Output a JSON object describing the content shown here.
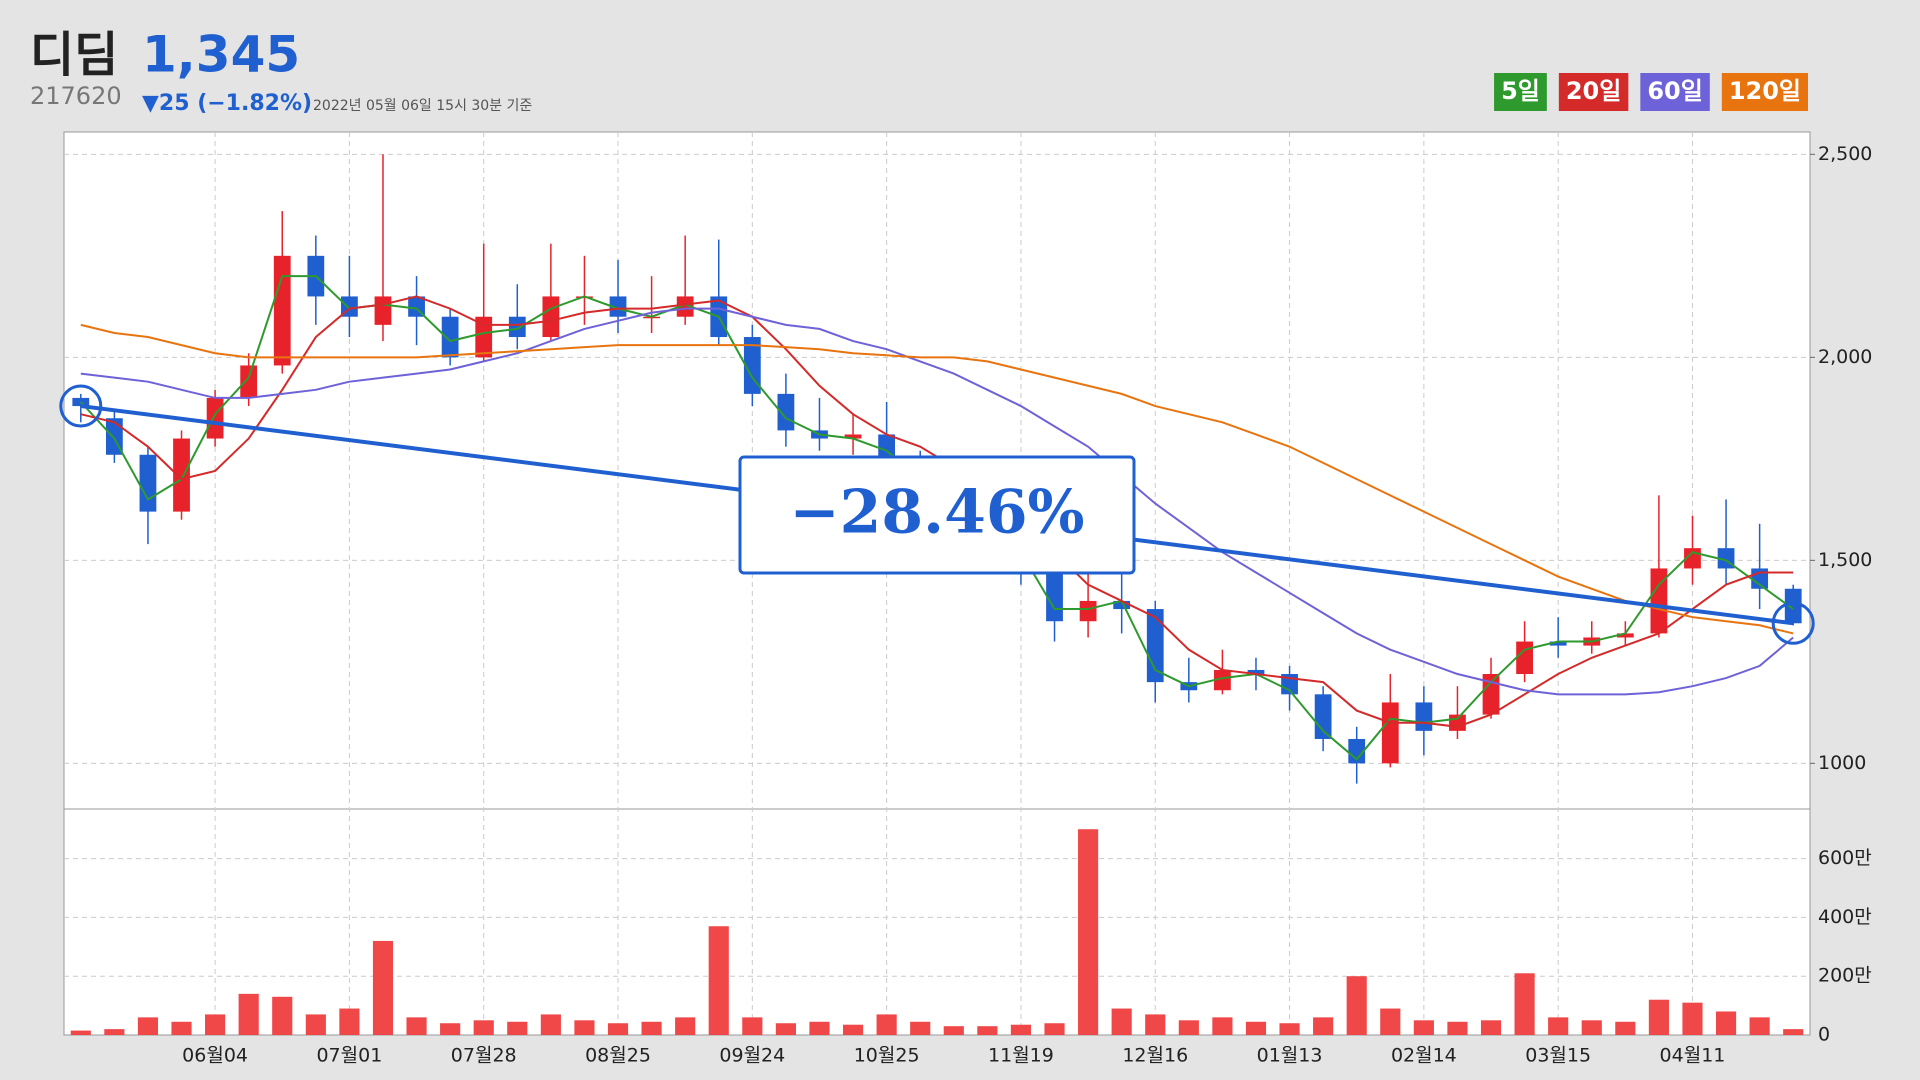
{
  "header": {
    "name": "디딤",
    "price": "1,345",
    "code": "217620",
    "change": "▼25 (−1.82%)",
    "timestamp": "2022년 05월 06일 15시 30분 기준"
  },
  "chart_data": {
    "type": "candlestick",
    "categories": [
      null,
      null,
      null,
      null,
      "06월04",
      null,
      null,
      null,
      "07월01",
      null,
      null,
      null,
      "07월28",
      null,
      null,
      null,
      "08월25",
      null,
      null,
      null,
      "09월24",
      null,
      null,
      null,
      "10월25",
      null,
      null,
      null,
      "11월19",
      null,
      null,
      null,
      "12월16",
      null,
      null,
      null,
      "01월13",
      null,
      null,
      null,
      "02월14",
      null,
      null,
      null,
      "03월15",
      null,
      null,
      null,
      "04월11",
      null,
      null,
      null
    ],
    "open": [
      1900,
      1850,
      1760,
      1620,
      1800,
      1900,
      1980,
      2250,
      2150,
      2080,
      2150,
      2100,
      2000,
      2100,
      2050,
      2150,
      2150,
      2100,
      2100,
      2150,
      2050,
      1910,
      1820,
      1800,
      1810,
      1750,
      1680,
      1650,
      1600,
      1500,
      1350,
      1400,
      1380,
      1200,
      1180,
      1230,
      1220,
      1170,
      1060,
      1000,
      1150,
      1080,
      1120,
      1220,
      1300,
      1290,
      1310,
      1320,
      1480,
      1530,
      1480,
      1430
    ],
    "high": [
      1910,
      1870,
      1780,
      1820,
      1920,
      2010,
      2360,
      2300,
      2250,
      2500,
      2200,
      2120,
      2280,
      2180,
      2280,
      2250,
      2240,
      2200,
      2300,
      2290,
      2080,
      1960,
      1900,
      1860,
      1890,
      1770,
      1710,
      1680,
      1620,
      1520,
      1560,
      1520,
      1400,
      1260,
      1280,
      1260,
      1240,
      1190,
      1090,
      1220,
      1190,
      1190,
      1260,
      1350,
      1360,
      1350,
      1350,
      1660,
      1610,
      1650,
      1590,
      1440
    ],
    "low": [
      1840,
      1740,
      1540,
      1600,
      1780,
      1880,
      1960,
      2080,
      2050,
      2040,
      2030,
      1980,
      1990,
      2020,
      2040,
      2080,
      2060,
      2060,
      2080,
      2030,
      1880,
      1780,
      1770,
      1760,
      1700,
      1660,
      1620,
      1560,
      1440,
      1300,
      1310,
      1320,
      1150,
      1150,
      1170,
      1180,
      1130,
      1030,
      950,
      990,
      1020,
      1060,
      1110,
      1200,
      1260,
      1270,
      1290,
      1310,
      1440,
      1440,
      1380,
      1340
    ],
    "close": [
      1880,
      1760,
      1620,
      1800,
      1900,
      1980,
      2250,
      2150,
      2100,
      2150,
      2100,
      2000,
      2100,
      2050,
      2150,
      2150,
      2100,
      2100,
      2150,
      2050,
      1910,
      1820,
      1800,
      1810,
      1750,
      1680,
      1650,
      1600,
      1500,
      1350,
      1400,
      1380,
      1200,
      1180,
      1230,
      1220,
      1170,
      1060,
      1000,
      1150,
      1080,
      1120,
      1220,
      1300,
      1290,
      1310,
      1320,
      1480,
      1530,
      1480,
      1430,
      1345
    ],
    "up_color": "#e8222a",
    "down_color": "#1f5fd0",
    "series": [
      {
        "name": "5일",
        "color": "#2e9a2e",
        "values": [
          1890,
          1800,
          1650,
          1700,
          1860,
          1950,
          2200,
          2200,
          2120,
          2130,
          2120,
          2040,
          2060,
          2070,
          2120,
          2150,
          2120,
          2100,
          2130,
          2100,
          1950,
          1850,
          1810,
          1800,
          1770,
          1700,
          1660,
          1620,
          1520,
          1380,
          1380,
          1400,
          1230,
          1190,
          1210,
          1220,
          1180,
          1080,
          1010,
          1110,
          1100,
          1110,
          1200,
          1280,
          1300,
          1300,
          1320,
          1440,
          1520,
          1500,
          1440,
          1380
        ]
      },
      {
        "name": "20일",
        "color": "#d42a2a",
        "values": [
          1860,
          1840,
          1780,
          1700,
          1720,
          1800,
          1920,
          2050,
          2120,
          2130,
          2150,
          2120,
          2080,
          2080,
          2090,
          2110,
          2120,
          2120,
          2130,
          2140,
          2100,
          2020,
          1930,
          1860,
          1810,
          1780,
          1730,
          1680,
          1620,
          1520,
          1440,
          1400,
          1360,
          1280,
          1230,
          1220,
          1210,
          1200,
          1130,
          1100,
          1100,
          1090,
          1120,
          1170,
          1220,
          1260,
          1290,
          1320,
          1380,
          1440,
          1470,
          1470
        ]
      },
      {
        "name": "60일",
        "color": "#6e62d8",
        "values": [
          1960,
          1950,
          1940,
          1920,
          1900,
          1900,
          1910,
          1920,
          1940,
          1950,
          1960,
          1970,
          1990,
          2010,
          2040,
          2070,
          2090,
          2110,
          2120,
          2120,
          2100,
          2080,
          2070,
          2040,
          2020,
          1990,
          1960,
          1920,
          1880,
          1830,
          1780,
          1710,
          1640,
          1580,
          1520,
          1470,
          1420,
          1370,
          1320,
          1280,
          1250,
          1220,
          1200,
          1180,
          1170,
          1170,
          1170,
          1175,
          1190,
          1210,
          1240,
          1310
        ]
      },
      {
        "name": "120일",
        "color": "#e8740f",
        "values": [
          2080,
          2060,
          2050,
          2030,
          2010,
          2000,
          2000,
          2000,
          2000,
          2000,
          2000,
          2005,
          2010,
          2015,
          2020,
          2025,
          2030,
          2030,
          2030,
          2030,
          2030,
          2025,
          2020,
          2010,
          2005,
          2000,
          2000,
          1990,
          1970,
          1950,
          1930,
          1910,
          1880,
          1860,
          1840,
          1810,
          1780,
          1740,
          1700,
          1660,
          1620,
          1580,
          1540,
          1500,
          1460,
          1430,
          1400,
          1380,
          1360,
          1350,
          1340,
          1320
        ]
      }
    ],
    "ylim": [
      890,
      2555
    ],
    "yticks": [
      1000,
      {
        "value": 1500,
        "label": "1,500"
      },
      {
        "value": 2000,
        "label": "2,000"
      },
      {
        "value": 2500,
        "label": "2,500"
      }
    ],
    "grid": true,
    "volume": {
      "color": "#f04848",
      "values": [
        15,
        20,
        60,
        45,
        70,
        140,
        130,
        70,
        90,
        320,
        60,
        40,
        50,
        45,
        70,
        50,
        40,
        45,
        60,
        370,
        60,
        40,
        45,
        35,
        70,
        45,
        30,
        30,
        35,
        40,
        700,
        90,
        70,
        50,
        60,
        45,
        40,
        60,
        200,
        90,
        50,
        45,
        50,
        210,
        60,
        50,
        45,
        120,
        110,
        80,
        60,
        20
      ],
      "ylim": [
        0,
        762
      ],
      "yticks": [
        0,
        {
          "value": 200,
          "label": "200만"
        },
        {
          "value": 400,
          "label": "400만"
        },
        {
          "value": 600,
          "label": "600만"
        }
      ]
    },
    "annotation": {
      "text": "−28.46%",
      "color": "#1f5fd0"
    }
  }
}
